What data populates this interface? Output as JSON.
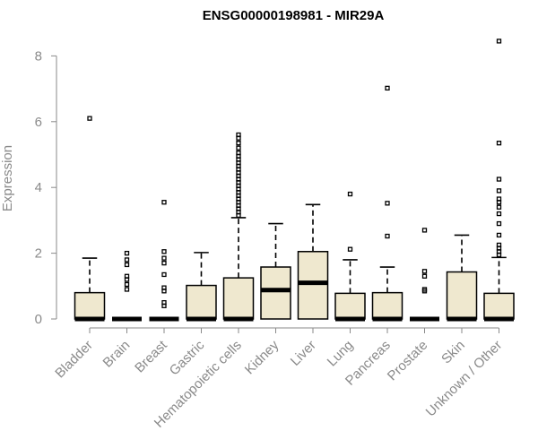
{
  "chart_data": {
    "type": "box",
    "title": "ENSG00000198981 - MIR29A",
    "xlabel": "",
    "ylabel": "Expression",
    "ylim": [
      0,
      8.5
    ],
    "yticks": [
      "0",
      "2",
      "4",
      "6",
      "8"
    ],
    "box_fill": "#efe8cf",
    "categories": [
      "Bladder",
      "Brain",
      "Breast",
      "Gastric",
      "Hematopoietic cells",
      "Kidney",
      "Liver",
      "Lung",
      "Pancreas",
      "Prostate",
      "Skin",
      "Unknown / Other"
    ],
    "boxes": [
      {
        "name": "Bladder",
        "q1": 0,
        "median": 0,
        "q3": 0.8,
        "whisker_low": 0,
        "whisker_high": 1.85,
        "outliers": [
          6.1
        ]
      },
      {
        "name": "Brain",
        "q1": 0,
        "median": 0,
        "q3": 0,
        "whisker_low": 0,
        "whisker_high": 0,
        "outliers": [
          0.9,
          1.05,
          1.2,
          1.3,
          1.65,
          1.8,
          2.0
        ]
      },
      {
        "name": "Breast",
        "q1": 0,
        "median": 0,
        "q3": 0,
        "whisker_low": 0,
        "whisker_high": 0,
        "outliers": [
          0.4,
          0.5,
          0.85,
          0.95,
          1.35,
          1.7,
          1.85,
          2.05,
          3.55
        ]
      },
      {
        "name": "Gastric",
        "q1": 0,
        "median": 0,
        "q3": 1.02,
        "whisker_low": 0,
        "whisker_high": 2.02,
        "outliers": []
      },
      {
        "name": "Hematopoietic cells",
        "q1": 0,
        "median": 0,
        "q3": 1.25,
        "whisker_low": 0,
        "whisker_high": 3.08,
        "outliers": [
          3.15,
          3.25,
          3.35,
          3.45,
          3.55,
          3.65,
          3.75,
          3.85,
          3.95,
          4.05,
          4.15,
          4.25,
          4.35,
          4.45,
          4.55,
          4.65,
          4.75,
          4.85,
          4.95,
          5.05,
          5.2,
          5.35,
          5.5,
          5.6
        ]
      },
      {
        "name": "Kidney",
        "q1": 0,
        "median": 0.88,
        "q3": 1.58,
        "whisker_low": 0,
        "whisker_high": 2.9,
        "outliers": []
      },
      {
        "name": "Liver",
        "q1": 0,
        "median": 1.1,
        "q3": 2.05,
        "whisker_low": 0,
        "whisker_high": 3.48,
        "outliers": []
      },
      {
        "name": "Lung",
        "q1": 0,
        "median": 0,
        "q3": 0.78,
        "whisker_low": 0,
        "whisker_high": 1.8,
        "outliers": [
          2.12,
          3.8
        ]
      },
      {
        "name": "Pancreas",
        "q1": 0,
        "median": 0,
        "q3": 0.8,
        "whisker_low": 0,
        "whisker_high": 1.58,
        "outliers": [
          2.52,
          3.52,
          7.02
        ]
      },
      {
        "name": "Prostate",
        "q1": 0,
        "median": 0,
        "q3": 0,
        "whisker_low": 0,
        "whisker_high": 0,
        "outliers": [
          0.85,
          0.9,
          1.3,
          1.45,
          2.7
        ]
      },
      {
        "name": "Skin",
        "q1": 0,
        "median": 0,
        "q3": 1.43,
        "whisker_low": 0,
        "whisker_high": 2.55,
        "outliers": []
      },
      {
        "name": "Unknown / Other",
        "q1": 0,
        "median": 0,
        "q3": 0.78,
        "whisker_low": 0,
        "whisker_high": 1.87,
        "outliers": [
          1.95,
          2.05,
          2.15,
          2.25,
          2.55,
          2.9,
          3.2,
          3.4,
          3.55,
          3.65,
          3.9,
          4.25,
          5.35,
          8.45
        ]
      }
    ]
  }
}
